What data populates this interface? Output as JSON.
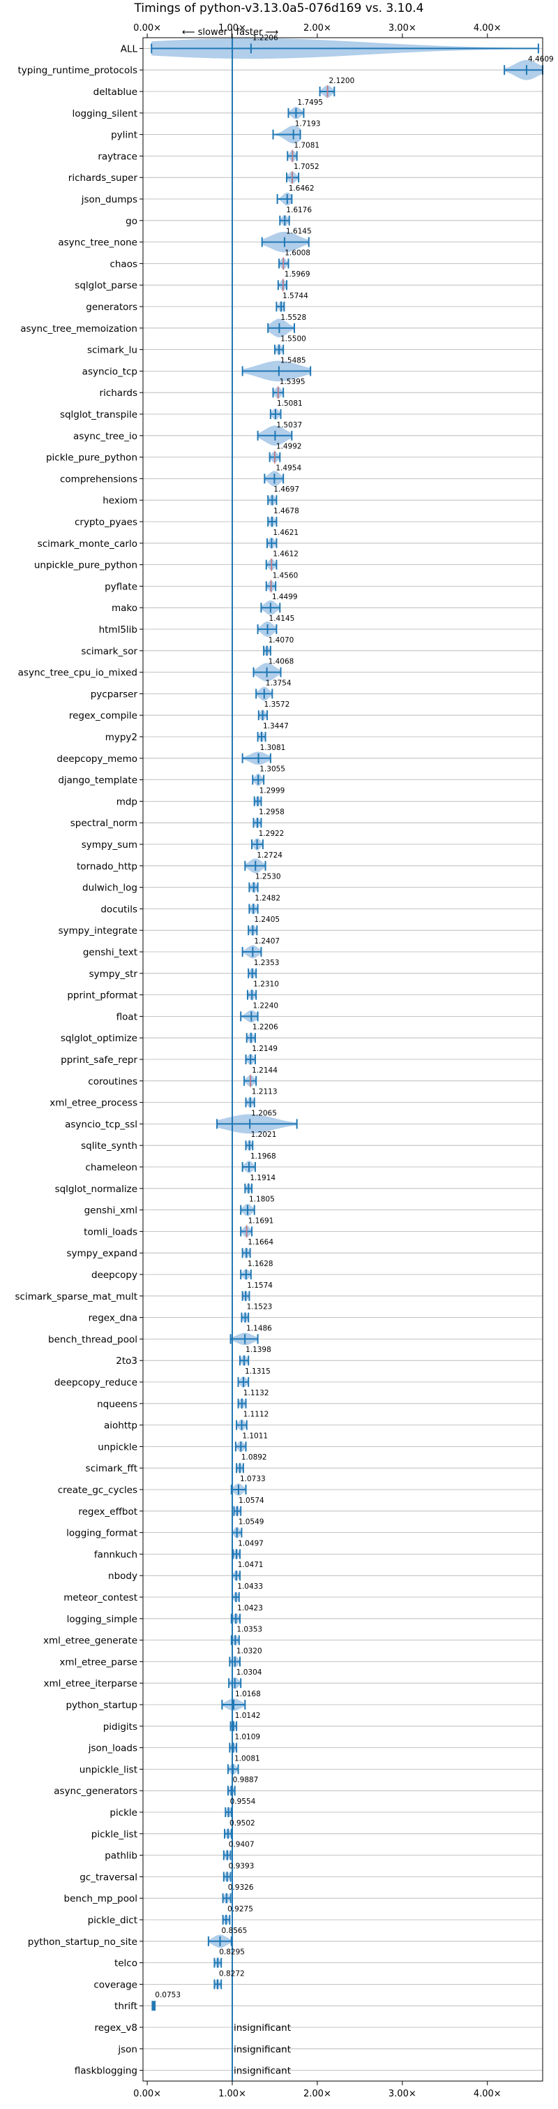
{
  "chart_data": {
    "type": "violin",
    "title": "Timings of python-v3.13.0a5-076d169 vs. 3.10.4",
    "direction_label": "⟵ slower | faster ⟶",
    "xlim": [
      -0.05,
      4.65
    ],
    "x_ticks": [
      0,
      1,
      2,
      3,
      4
    ],
    "x_tick_labels": [
      "0.00×",
      "1.00×",
      "2.00×",
      "3.00×",
      "4.00×"
    ],
    "reference_line": 1.0,
    "grid": "horizontal",
    "insignificant_label": "insignificant",
    "colors": {
      "violin": "#a9c9e8",
      "line": "#1f77b4",
      "significant_marker": "#e07b7b",
      "grid": "#b0b0b0"
    },
    "benchmarks": [
      {
        "name": "ALL",
        "value": 1.2206,
        "low": 0.05,
        "high": 4.6,
        "spread": 0.4
      },
      {
        "name": "typing_runtime_protocols",
        "value": 4.4609,
        "low": 4.2,
        "high": 4.65,
        "spread": 0.15
      },
      {
        "name": "deltablue",
        "value": 2.12,
        "low": 2.03,
        "high": 2.2,
        "spread": 0.05,
        "marker": true
      },
      {
        "name": "logging_silent",
        "value": 1.7495,
        "low": 1.66,
        "high": 1.84,
        "spread": 0.05
      },
      {
        "name": "pylint",
        "value": 1.7193,
        "low": 1.48,
        "high": 1.8,
        "spread": 0.12
      },
      {
        "name": "raytrace",
        "value": 1.7081,
        "low": 1.65,
        "high": 1.76,
        "spread": 0.04,
        "marker": true
      },
      {
        "name": "richards_super",
        "value": 1.7052,
        "low": 1.64,
        "high": 1.78,
        "spread": 0.05,
        "marker": true
      },
      {
        "name": "json_dumps",
        "value": 1.6462,
        "low": 1.53,
        "high": 1.7,
        "spread": 0.06
      },
      {
        "name": "go",
        "value": 1.6176,
        "low": 1.56,
        "high": 1.67,
        "spread": 0.04
      },
      {
        "name": "async_tree_none",
        "value": 1.6145,
        "low": 1.35,
        "high": 1.9,
        "spread": 0.22
      },
      {
        "name": "chaos",
        "value": 1.6008,
        "low": 1.55,
        "high": 1.66,
        "spread": 0.04,
        "marker": true
      },
      {
        "name": "sqlglot_parse",
        "value": 1.5969,
        "low": 1.54,
        "high": 1.64,
        "spread": 0.04,
        "marker": true
      },
      {
        "name": "generators",
        "value": 1.5744,
        "low": 1.52,
        "high": 1.61,
        "spread": 0.035
      },
      {
        "name": "async_tree_memoization",
        "value": 1.5528,
        "low": 1.42,
        "high": 1.73,
        "spread": 0.13
      },
      {
        "name": "scimark_lu",
        "value": 1.55,
        "low": 1.5,
        "high": 1.6,
        "spread": 0.035
      },
      {
        "name": "asyncio_tcp",
        "value": 1.5485,
        "low": 1.12,
        "high": 1.92,
        "spread": 0.32
      },
      {
        "name": "richards",
        "value": 1.5395,
        "low": 1.48,
        "high": 1.6,
        "spread": 0.04,
        "marker": true
      },
      {
        "name": "sqlglot_transpile",
        "value": 1.5081,
        "low": 1.45,
        "high": 1.57,
        "spread": 0.04
      },
      {
        "name": "async_tree_io",
        "value": 1.5037,
        "low": 1.3,
        "high": 1.7,
        "spread": 0.15
      },
      {
        "name": "pickle_pure_python",
        "value": 1.4992,
        "low": 1.44,
        "high": 1.56,
        "spread": 0.04,
        "marker": true
      },
      {
        "name": "comprehensions",
        "value": 1.4954,
        "low": 1.38,
        "high": 1.6,
        "spread": 0.09
      },
      {
        "name": "hexiom",
        "value": 1.4697,
        "low": 1.42,
        "high": 1.52,
        "spread": 0.04
      },
      {
        "name": "crypto_pyaes",
        "value": 1.4678,
        "low": 1.42,
        "high": 1.52,
        "spread": 0.035
      },
      {
        "name": "scimark_monte_carlo",
        "value": 1.4621,
        "low": 1.41,
        "high": 1.52,
        "spread": 0.04
      },
      {
        "name": "unpickle_pure_python",
        "value": 1.4612,
        "low": 1.4,
        "high": 1.52,
        "spread": 0.04,
        "marker": true
      },
      {
        "name": "pyflate",
        "value": 1.456,
        "low": 1.4,
        "high": 1.51,
        "spread": 0.04,
        "marker": true
      },
      {
        "name": "mako",
        "value": 1.4499,
        "low": 1.34,
        "high": 1.56,
        "spread": 0.08
      },
      {
        "name": "html5lib",
        "value": 1.4145,
        "low": 1.3,
        "high": 1.52,
        "spread": 0.09
      },
      {
        "name": "scimark_sor",
        "value": 1.407,
        "low": 1.37,
        "high": 1.45,
        "spread": 0.03
      },
      {
        "name": "async_tree_cpu_io_mixed",
        "value": 1.4068,
        "low": 1.25,
        "high": 1.57,
        "spread": 0.13
      },
      {
        "name": "pycparser",
        "value": 1.3754,
        "low": 1.28,
        "high": 1.47,
        "spread": 0.07
      },
      {
        "name": "regex_compile",
        "value": 1.3572,
        "low": 1.31,
        "high": 1.41,
        "spread": 0.035
      },
      {
        "name": "mypy2",
        "value": 1.3447,
        "low": 1.3,
        "high": 1.39,
        "spread": 0.03
      },
      {
        "name": "deepcopy_memo",
        "value": 1.3081,
        "low": 1.12,
        "high": 1.45,
        "spread": 0.06
      },
      {
        "name": "django_template",
        "value": 1.3055,
        "low": 1.24,
        "high": 1.37,
        "spread": 0.05
      },
      {
        "name": "mdp",
        "value": 1.2999,
        "low": 1.26,
        "high": 1.34,
        "spread": 0.03
      },
      {
        "name": "spectral_norm",
        "value": 1.2958,
        "low": 1.25,
        "high": 1.34,
        "spread": 0.03
      },
      {
        "name": "sympy_sum",
        "value": 1.2922,
        "low": 1.23,
        "high": 1.36,
        "spread": 0.05
      },
      {
        "name": "tornado_http",
        "value": 1.2724,
        "low": 1.15,
        "high": 1.39,
        "spread": 0.08
      },
      {
        "name": "dulwich_log",
        "value": 1.253,
        "low": 1.2,
        "high": 1.3,
        "spread": 0.035
      },
      {
        "name": "docutils",
        "value": 1.2482,
        "low": 1.2,
        "high": 1.3,
        "spread": 0.035
      },
      {
        "name": "sympy_integrate",
        "value": 1.2405,
        "low": 1.19,
        "high": 1.29,
        "spread": 0.035
      },
      {
        "name": "genshi_text",
        "value": 1.2407,
        "low": 1.12,
        "high": 1.34,
        "spread": 0.06
      },
      {
        "name": "sympy_str",
        "value": 1.2353,
        "low": 1.19,
        "high": 1.28,
        "spread": 0.03
      },
      {
        "name": "pprint_pformat",
        "value": 1.231,
        "low": 1.18,
        "high": 1.28,
        "spread": 0.035
      },
      {
        "name": "float",
        "value": 1.224,
        "low": 1.1,
        "high": 1.3,
        "spread": 0.05
      },
      {
        "name": "sqlglot_optimize",
        "value": 1.2206,
        "low": 1.17,
        "high": 1.27,
        "spread": 0.035
      },
      {
        "name": "pprint_safe_repr",
        "value": 1.2149,
        "low": 1.16,
        "high": 1.27,
        "spread": 0.035
      },
      {
        "name": "coroutines",
        "value": 1.2144,
        "low": 1.14,
        "high": 1.28,
        "spread": 0.04,
        "marker": true
      },
      {
        "name": "xml_etree_process",
        "value": 1.2113,
        "low": 1.16,
        "high": 1.26,
        "spread": 0.03
      },
      {
        "name": "asyncio_tcp_ssl",
        "value": 1.2065,
        "low": 0.82,
        "high": 1.76,
        "spread": 0.14
      },
      {
        "name": "sqlite_synth",
        "value": 1.2021,
        "low": 1.16,
        "high": 1.24,
        "spread": 0.03
      },
      {
        "name": "chameleon",
        "value": 1.1968,
        "low": 1.12,
        "high": 1.27,
        "spread": 0.05
      },
      {
        "name": "sqlglot_normalize",
        "value": 1.1914,
        "low": 1.15,
        "high": 1.23,
        "spread": 0.03
      },
      {
        "name": "genshi_xml",
        "value": 1.1805,
        "low": 1.1,
        "high": 1.26,
        "spread": 0.05
      },
      {
        "name": "tomli_loads",
        "value": 1.1691,
        "low": 1.1,
        "high": 1.23,
        "spread": 0.04,
        "marker": true
      },
      {
        "name": "sympy_expand",
        "value": 1.1664,
        "low": 1.12,
        "high": 1.21,
        "spread": 0.03
      },
      {
        "name": "deepcopy",
        "value": 1.1628,
        "low": 1.1,
        "high": 1.22,
        "spread": 0.03
      },
      {
        "name": "scimark_sparse_mat_mult",
        "value": 1.1574,
        "low": 1.12,
        "high": 1.2,
        "spread": 0.03
      },
      {
        "name": "regex_dna",
        "value": 1.1523,
        "low": 1.11,
        "high": 1.19,
        "spread": 0.03
      },
      {
        "name": "bench_thread_pool",
        "value": 1.1486,
        "low": 0.98,
        "high": 1.3,
        "spread": 0.05
      },
      {
        "name": "2to3",
        "value": 1.1398,
        "low": 1.09,
        "high": 1.19,
        "spread": 0.035
      },
      {
        "name": "deepcopy_reduce",
        "value": 1.1315,
        "low": 1.07,
        "high": 1.19,
        "spread": 0.035
      },
      {
        "name": "nqueens",
        "value": 1.1132,
        "low": 1.07,
        "high": 1.16,
        "spread": 0.03
      },
      {
        "name": "aiohttp",
        "value": 1.1112,
        "low": 1.05,
        "high": 1.17,
        "spread": 0.04
      },
      {
        "name": "unpickle",
        "value": 1.1011,
        "low": 1.04,
        "high": 1.16,
        "spread": 0.035
      },
      {
        "name": "scimark_fft",
        "value": 1.0892,
        "low": 1.05,
        "high": 1.13,
        "spread": 0.03
      },
      {
        "name": "create_gc_cycles",
        "value": 1.0733,
        "low": 0.99,
        "high": 1.16,
        "spread": 0.05
      },
      {
        "name": "regex_effbot",
        "value": 1.0574,
        "low": 1.02,
        "high": 1.1,
        "spread": 0.03
      },
      {
        "name": "logging_format",
        "value": 1.0549,
        "low": 1.0,
        "high": 1.11,
        "spread": 0.04
      },
      {
        "name": "fannkuch",
        "value": 1.0497,
        "low": 1.01,
        "high": 1.09,
        "spread": 0.03
      },
      {
        "name": "nbody",
        "value": 1.0471,
        "low": 1.0,
        "high": 1.09,
        "spread": 0.03
      },
      {
        "name": "meteor_contest",
        "value": 1.0433,
        "low": 1.0,
        "high": 1.08,
        "spread": 0.03
      },
      {
        "name": "logging_simple",
        "value": 1.0423,
        "low": 0.99,
        "high": 1.09,
        "spread": 0.035
      },
      {
        "name": "xml_etree_generate",
        "value": 1.0353,
        "low": 0.99,
        "high": 1.08,
        "spread": 0.03
      },
      {
        "name": "xml_etree_parse",
        "value": 1.032,
        "low": 0.97,
        "high": 1.09,
        "spread": 0.04
      },
      {
        "name": "xml_etree_iterparse",
        "value": 1.0304,
        "low": 0.96,
        "high": 1.1,
        "spread": 0.045
      },
      {
        "name": "python_startup",
        "value": 1.0168,
        "low": 0.88,
        "high": 1.15,
        "spread": 0.05
      },
      {
        "name": "pidigits",
        "value": 1.0142,
        "low": 0.98,
        "high": 1.05,
        "spread": 0.03
      },
      {
        "name": "json_loads",
        "value": 1.0109,
        "low": 0.97,
        "high": 1.05,
        "spread": 0.03
      },
      {
        "name": "unpickle_list",
        "value": 1.0081,
        "low": 0.95,
        "high": 1.07,
        "spread": 0.035
      },
      {
        "name": "async_generators",
        "value": 0.9887,
        "low": 0.95,
        "high": 1.03,
        "spread": 0.03
      },
      {
        "name": "pickle",
        "value": 0.9554,
        "low": 0.92,
        "high": 0.99,
        "spread": 0.03
      },
      {
        "name": "pickle_list",
        "value": 0.9502,
        "low": 0.91,
        "high": 0.99,
        "spread": 0.03
      },
      {
        "name": "pathlib",
        "value": 0.9407,
        "low": 0.9,
        "high": 0.98,
        "spread": 0.03
      },
      {
        "name": "gc_traversal",
        "value": 0.9393,
        "low": 0.9,
        "high": 0.98,
        "spread": 0.03
      },
      {
        "name": "bench_mp_pool",
        "value": 0.9326,
        "low": 0.89,
        "high": 0.98,
        "spread": 0.03
      },
      {
        "name": "pickle_dict",
        "value": 0.9275,
        "low": 0.89,
        "high": 0.97,
        "spread": 0.03
      },
      {
        "name": "python_startup_no_site",
        "value": 0.8565,
        "low": 0.72,
        "high": 0.99,
        "spread": 0.06
      },
      {
        "name": "telco",
        "value": 0.8295,
        "low": 0.79,
        "high": 0.87,
        "spread": 0.03
      },
      {
        "name": "coverage",
        "value": 0.8272,
        "low": 0.79,
        "high": 0.87,
        "spread": 0.03
      },
      {
        "name": "thrift",
        "value": 0.0753,
        "low": 0.06,
        "high": 0.09,
        "spread": 0.01
      },
      {
        "name": "regex_v8",
        "value": null
      },
      {
        "name": "json",
        "value": null
      },
      {
        "name": "flaskblogging",
        "value": null
      }
    ]
  }
}
